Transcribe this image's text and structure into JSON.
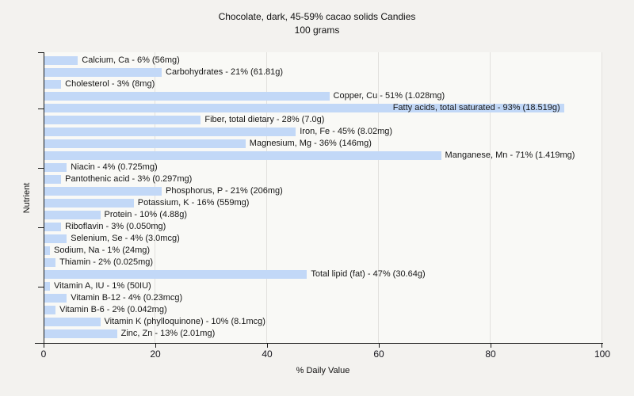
{
  "page": {
    "background": "#f3f2ef"
  },
  "chart_data": {
    "type": "bar",
    "orientation": "horizontal",
    "title": "Chocolate, dark, 45-59% cacao solids Candies",
    "subtitle": "100 grams",
    "xlabel": "% Daily Value",
    "ylabel": "Nutrient",
    "xlim": [
      0,
      100
    ],
    "x_tick_values": [
      0,
      20,
      40,
      60,
      80,
      100
    ],
    "x_tick_labels": [
      "0",
      "20",
      "40",
      "60",
      "80",
      "100"
    ],
    "grid": "vertical light-gray lines at x ticks",
    "legend": "none",
    "colors": {
      "bar": "#c2d8f7",
      "plot_bg": "#f9f9f6",
      "page_bg": "#f3f2ef",
      "gridline": "#e2e1dd",
      "axis": "#1a1a1a",
      "text": "#161616"
    },
    "bars": [
      {
        "nutrient": "Calcium, Ca",
        "percent_dv": 6,
        "amount": "56mg",
        "label": "Calcium, Ca - 6% (56mg)"
      },
      {
        "nutrient": "Carbohydrates",
        "percent_dv": 21,
        "amount": "61.81g",
        "label": "Carbohydrates - 21% (61.81g)"
      },
      {
        "nutrient": "Cholesterol",
        "percent_dv": 3,
        "amount": "8mg",
        "label": "Cholesterol - 3% (8mg)"
      },
      {
        "nutrient": "Copper, Cu",
        "percent_dv": 51,
        "amount": "1.028mg",
        "label": "Copper, Cu - 51% (1.028mg)"
      },
      {
        "nutrient": "Fatty acids, total saturated",
        "percent_dv": 93,
        "amount": "18.519g",
        "label": "Fatty acids, total saturated - 93% (18.519g)"
      },
      {
        "nutrient": "Fiber, total dietary",
        "percent_dv": 28,
        "amount": "7.0g",
        "label": "Fiber, total dietary - 28% (7.0g)"
      },
      {
        "nutrient": "Iron, Fe",
        "percent_dv": 45,
        "amount": "8.02mg",
        "label": "Iron, Fe - 45% (8.02mg)"
      },
      {
        "nutrient": "Magnesium, Mg",
        "percent_dv": 36,
        "amount": "146mg",
        "label": "Magnesium, Mg - 36% (146mg)"
      },
      {
        "nutrient": "Manganese, Mn",
        "percent_dv": 71,
        "amount": "1.419mg",
        "label": "Manganese, Mn - 71% (1.419mg)"
      },
      {
        "nutrient": "Niacin",
        "percent_dv": 4,
        "amount": "0.725mg",
        "label": "Niacin - 4% (0.725mg)"
      },
      {
        "nutrient": "Pantothenic acid",
        "percent_dv": 3,
        "amount": "0.297mg",
        "label": "Pantothenic acid - 3% (0.297mg)"
      },
      {
        "nutrient": "Phosphorus, P",
        "percent_dv": 21,
        "amount": "206mg",
        "label": "Phosphorus, P - 21% (206mg)"
      },
      {
        "nutrient": "Potassium, K",
        "percent_dv": 16,
        "amount": "559mg",
        "label": "Potassium, K - 16% (559mg)"
      },
      {
        "nutrient": "Protein",
        "percent_dv": 10,
        "amount": "4.88g",
        "label": "Protein - 10% (4.88g)"
      },
      {
        "nutrient": "Riboflavin",
        "percent_dv": 3,
        "amount": "0.050mg",
        "label": "Riboflavin - 3% (0.050mg)"
      },
      {
        "nutrient": "Selenium, Se",
        "percent_dv": 4,
        "amount": "3.0mcg",
        "label": "Selenium, Se - 4% (3.0mcg)"
      },
      {
        "nutrient": "Sodium, Na",
        "percent_dv": 1,
        "amount": "24mg",
        "label": "Sodium, Na - 1% (24mg)"
      },
      {
        "nutrient": "Thiamin",
        "percent_dv": 2,
        "amount": "0.025mg",
        "label": "Thiamin - 2% (0.025mg)"
      },
      {
        "nutrient": "Total lipid (fat)",
        "percent_dv": 47,
        "amount": "30.64g",
        "label": "Total lipid (fat) - 47% (30.64g)"
      },
      {
        "nutrient": "Vitamin A, IU",
        "percent_dv": 1,
        "amount": "50IU",
        "label": "Vitamin A, IU - 1% (50IU)"
      },
      {
        "nutrient": "Vitamin B-12",
        "percent_dv": 4,
        "amount": "0.23mcg",
        "label": "Vitamin B-12 - 4% (0.23mcg)"
      },
      {
        "nutrient": "Vitamin B-6",
        "percent_dv": 2,
        "amount": "0.042mg",
        "label": "Vitamin B-6 - 2% (0.042mg)"
      },
      {
        "nutrient": "Vitamin K (phylloquinone)",
        "percent_dv": 10,
        "amount": "8.1mcg",
        "label": "Vitamin K (phylloquinone) - 10% (8.1mcg)"
      },
      {
        "nutrient": "Zinc, Zn",
        "percent_dv": 13,
        "amount": "2.01mg",
        "label": "Zinc, Zn - 13% (2.01mg)"
      }
    ]
  }
}
